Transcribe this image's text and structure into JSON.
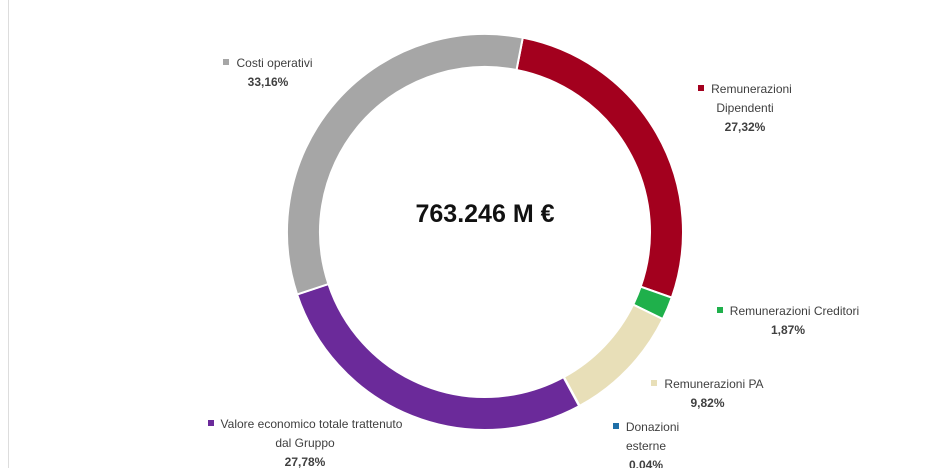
{
  "chart_data": {
    "type": "donut",
    "center_label": "763.246 M €",
    "categories": [
      "Remunerazioni Dipendenti",
      "Remunerazioni Creditori",
      "Remunerazioni PA",
      "Donazioni esterne",
      "Valore economico totale trattenuto dal Gruppo",
      "Costi operativi"
    ],
    "values": [
      27.32,
      1.87,
      9.82,
      0.04,
      27.78,
      33.16
    ],
    "value_labels": [
      "27,32%",
      "1,87%",
      "9,82%",
      "0,04%",
      "27,78%",
      "33,16%"
    ],
    "colors": [
      "#a3001e",
      "#1fb04b",
      "#e8dfb8",
      "#1f6fa8",
      "#6b2a9a",
      "#a6a6a6"
    ]
  }
}
